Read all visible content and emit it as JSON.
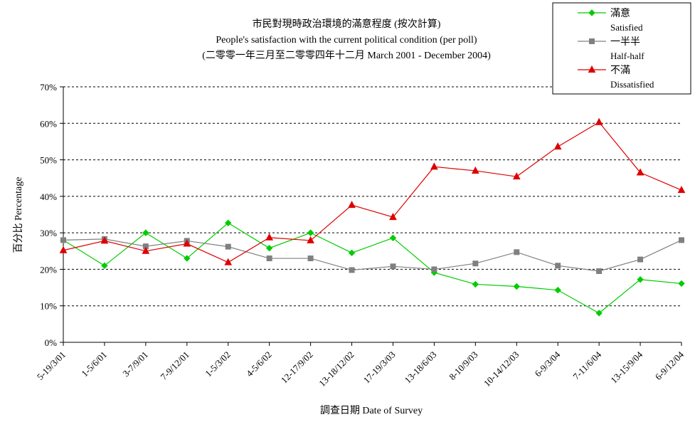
{
  "chart_data": {
    "type": "line",
    "title_lines": [
      "市民對現時政治環境的滿意程度 (按次計算)",
      "People's satisfaction with the current political condition (per poll)",
      "(二零零一年三月至二零零四年十二月 March 2001 - December 2004)"
    ],
    "xlabel": "調查日期 Date of Survey",
    "ylabel": "百分比 Percentage",
    "ylim": [
      0,
      70
    ],
    "y_ticks": [
      0,
      10,
      20,
      30,
      40,
      50,
      60,
      70
    ],
    "y_tick_labels": [
      "0%",
      "10%",
      "20%",
      "30%",
      "40%",
      "50%",
      "60%",
      "70%"
    ],
    "grid": true,
    "legend_position": "top-right",
    "categories": [
      "5-19/3/01",
      "1-5/6/01",
      "3-7/9/01",
      "7-9/12/01",
      "1-5/3/02",
      "4-5/6/02",
      "12-17/9/02",
      "13-18/12/02",
      "17-19/3/03",
      "13-18/6/03",
      "8-10/9/03",
      "10-14/12/03",
      "6-9/3/04",
      "7-11/6/04",
      "13-15/9/04",
      "6-9/12/04"
    ],
    "series": [
      {
        "name": "滿意",
        "name_en": "Satisfied",
        "color": "#00cc00",
        "marker": "diamond",
        "values": [
          28,
          21,
          30,
          23,
          32.7,
          25.8,
          30,
          24.5,
          28.6,
          19.1,
          15.9,
          15.3,
          14.3,
          8,
          17.2,
          16.1
        ]
      },
      {
        "name": "一半半",
        "name_en": "Half-half",
        "color": "#808080",
        "marker": "square",
        "values": [
          28,
          28.3,
          26.3,
          27.8,
          26.2,
          23,
          23,
          19.8,
          20.8,
          20,
          21.6,
          24.7,
          21,
          19.5,
          22.7,
          28
        ]
      },
      {
        "name": "不滿",
        "name_en": "Dissatisfied",
        "color": "#dd0000",
        "marker": "triangle",
        "values": [
          25.2,
          27.8,
          25,
          27,
          21.9,
          28.7,
          27.9,
          37.6,
          34.3,
          48.1,
          47,
          45.4,
          53.6,
          60.3,
          46.5,
          41.7
        ]
      }
    ]
  }
}
